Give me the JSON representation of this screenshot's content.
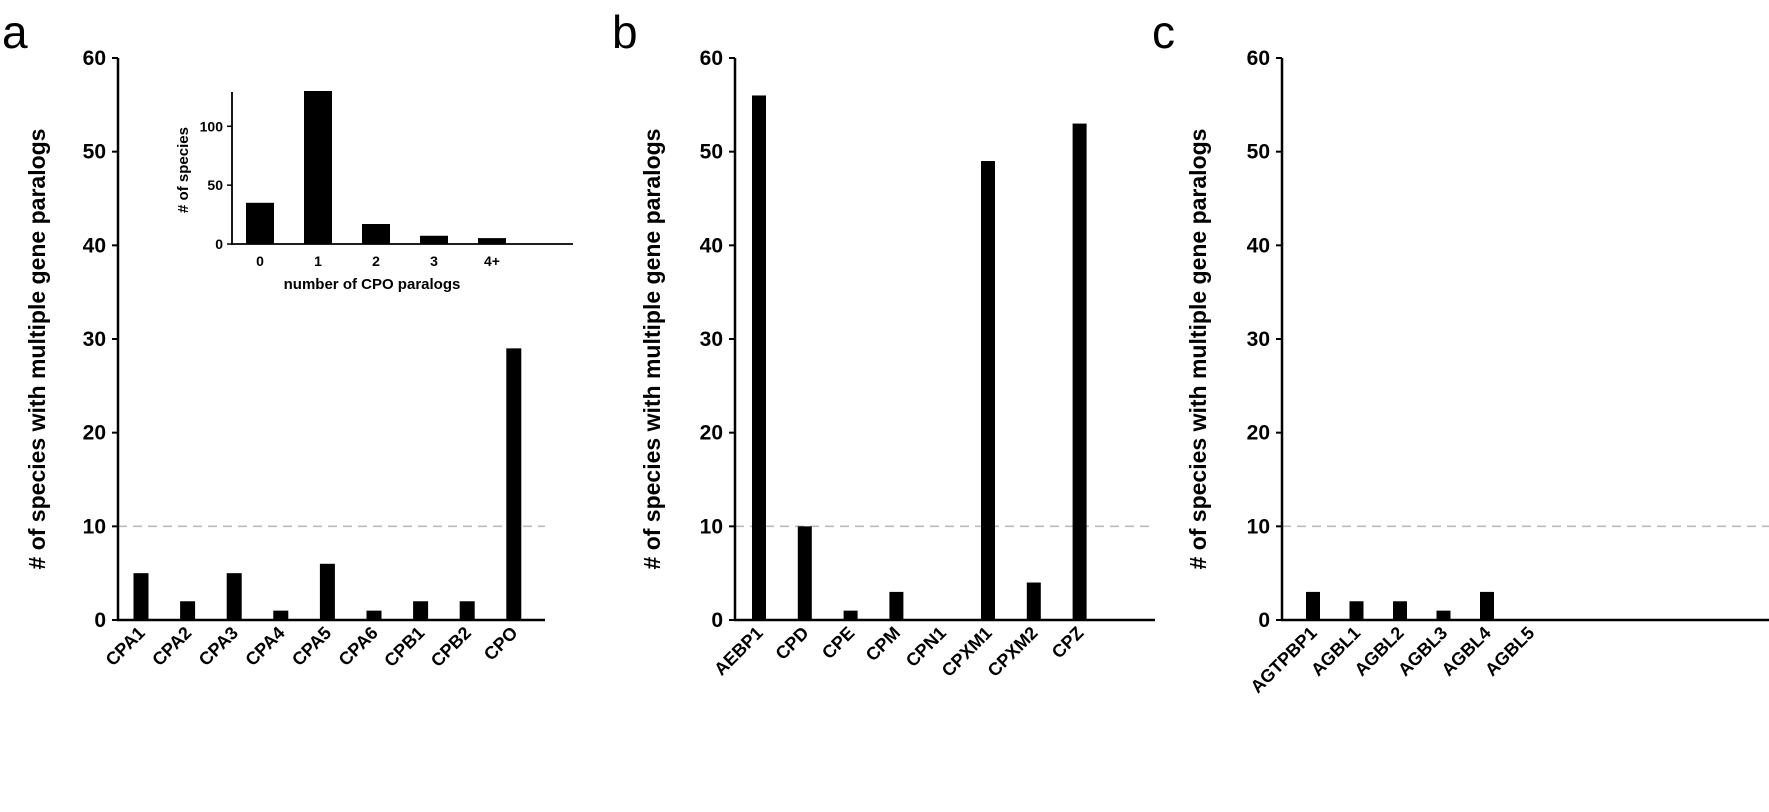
{
  "chart_data": [
    {
      "panel": "a",
      "type": "bar",
      "ylabel": "# of species with  multiple gene paralogs",
      "xlabel": "",
      "ylim": [
        0,
        60
      ],
      "yticks": [
        0,
        10,
        20,
        30,
        40,
        50,
        60
      ],
      "reference_line": 10,
      "categories": [
        "CPA1",
        "CPA2",
        "CPA3",
        "CPA4",
        "CPA5",
        "CPA6",
        "CPB1",
        "CPB2",
        "CPO"
      ],
      "values": [
        5,
        2,
        5,
        1,
        6,
        1,
        2,
        2,
        29
      ],
      "inset": {
        "type": "bar",
        "xlabel": "number of CPO paralogs",
        "ylabel": "# of species",
        "ylim": [
          0,
          130
        ],
        "yticks": [
          0,
          50,
          100
        ],
        "categories": [
          "0",
          "1",
          "2",
          "3",
          "4+"
        ],
        "values": [
          35,
          130,
          17,
          7,
          5
        ]
      }
    },
    {
      "panel": "b",
      "type": "bar",
      "ylabel": "# of species with  multiple gene paralogs",
      "xlabel": "",
      "ylim": [
        0,
        60
      ],
      "yticks": [
        0,
        10,
        20,
        30,
        40,
        50,
        60
      ],
      "reference_line": 10,
      "categories": [
        "AEBP1",
        "CPD",
        "CPE",
        "CPM",
        "CPN1",
        "CPXM1",
        "CPXM2",
        "CPZ"
      ],
      "values": [
        56,
        10,
        1,
        3,
        0,
        49,
        4,
        53
      ]
    },
    {
      "panel": "c",
      "type": "bar",
      "ylabel": "# of species with  multiple gene paralogs",
      "xlabel": "",
      "ylim": [
        0,
        60
      ],
      "yticks": [
        0,
        10,
        20,
        30,
        40,
        50,
        60
      ],
      "reference_line": 10,
      "categories": [
        "AGTPBP1",
        "AGBL1",
        "AGBL2",
        "AGBL3",
        "AGBL4",
        "AGBL5"
      ],
      "values": [
        3,
        2,
        2,
        1,
        3,
        0
      ]
    }
  ],
  "colors": {
    "bar": "#000000",
    "axis": "#000000",
    "reference_line": "#bbbbbb"
  }
}
